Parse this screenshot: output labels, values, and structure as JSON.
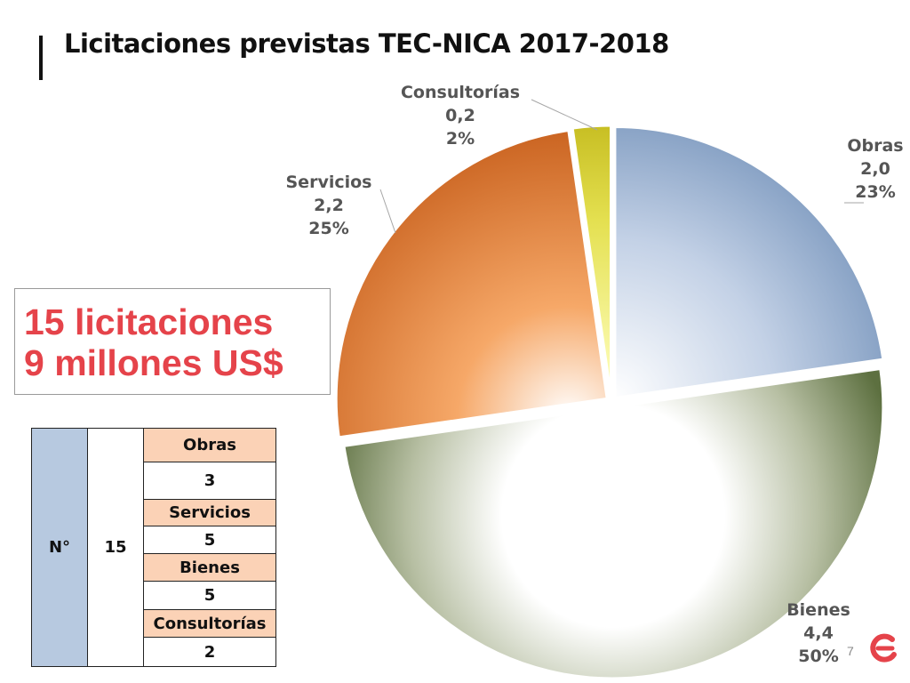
{
  "title": "Licitaciones  previstas TEC-NICA 2017-2018",
  "callout": {
    "line1": "15 licitaciones",
    "line2": "9 millones US$"
  },
  "table": {
    "col1": "N°",
    "col2": "15",
    "rows": [
      {
        "label": "Obras",
        "value": "3"
      },
      {
        "label": "Servicios",
        "value": "5"
      },
      {
        "label": "Bienes",
        "value": "5"
      },
      {
        "label": "Consultorías",
        "value": "2"
      }
    ]
  },
  "page_number": "7",
  "colors": {
    "obras": "#7f9bc0",
    "bienes": "#5d7040",
    "servicios": "#e07a33",
    "consultorias": "#d8d420",
    "label_text": "#555555",
    "callout_text": "#e5434a",
    "table_header": "#b7c9e0",
    "table_category": "#fbd2b6",
    "logo": "#e5434a"
  },
  "logo": {
    "icon": "logo-icon"
  },
  "chart_data": {
    "type": "pie",
    "slices": [
      {
        "name": "Obras",
        "value": 2.0,
        "value_label": "2,0",
        "percent_label": "23%"
      },
      {
        "name": "Bienes",
        "value": 4.4,
        "value_label": "4,4",
        "percent_label": "50%"
      },
      {
        "name": "Servicios",
        "value": 2.2,
        "value_label": "2,2",
        "percent_label": "25%"
      },
      {
        "name": "Consultorías",
        "value": 0.2,
        "value_label": "0,2",
        "percent_label": "2%"
      }
    ],
    "start_position": "12 o'clock, clockwise",
    "legend": "none",
    "exploded": true
  }
}
